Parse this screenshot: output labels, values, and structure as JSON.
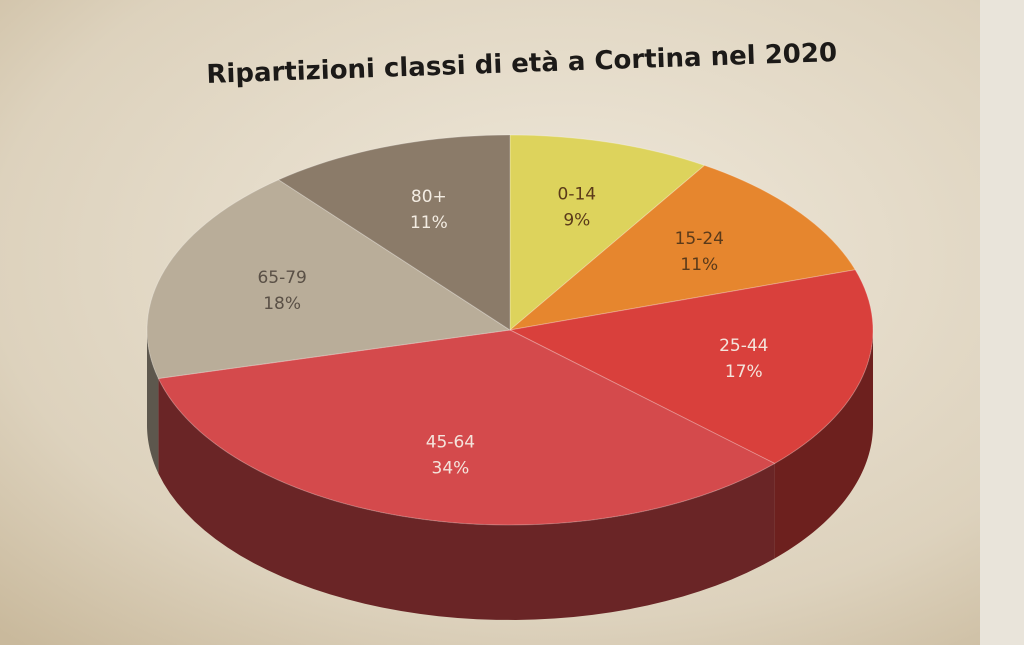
{
  "chart_data": {
    "type": "pie",
    "title": "Ripartizioni classi di età a Cortina nel 2020",
    "categories": [
      "0-14",
      "15-24",
      "25-44",
      "45-64",
      "65-79",
      "80+"
    ],
    "values": [
      9,
      11,
      17,
      34,
      18,
      11
    ],
    "value_labels": [
      "9%",
      "11%",
      "17%",
      "34%",
      "18%",
      "11%"
    ],
    "colors": [
      "#ddd35c",
      "#e6862e",
      "#d9403c",
      "#d44a4c",
      "#b9ad99",
      "#8b7b69"
    ]
  }
}
